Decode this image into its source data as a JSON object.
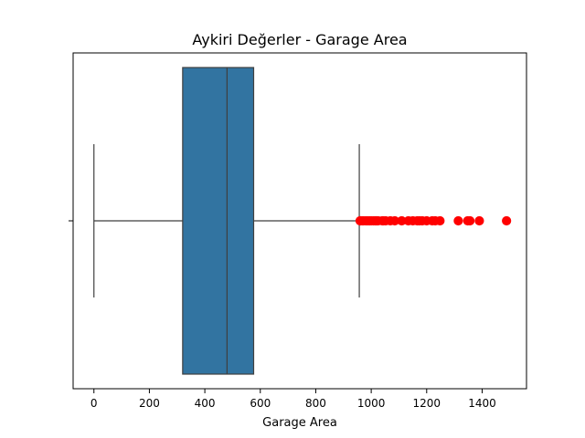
{
  "chart_data": {
    "type": "box",
    "title": "Aykiri Değerler - Garage Area",
    "xlabel": "Garage Area",
    "ylabel": "",
    "xlim": [
      -75,
      1560
    ],
    "xticks": [
      0,
      200,
      400,
      600,
      800,
      1000,
      1200,
      1400
    ],
    "orientation": "horizontal",
    "grid": false,
    "box": {
      "whisker_low": 0,
      "q1": 320,
      "median": 480,
      "q3": 576,
      "whisker_high": 957
    },
    "outliers": [
      960,
      962,
      968,
      972,
      980,
      985,
      990,
      995,
      1000,
      1008,
      1014,
      1018,
      1020,
      1025,
      1040,
      1043,
      1052,
      1069,
      1085,
      1110,
      1134,
      1150,
      1166,
      1174,
      1184,
      1200,
      1220,
      1231,
      1248,
      1314,
      1348,
      1356,
      1390,
      1488
    ]
  },
  "colors": {
    "box_fill": "#3274a1",
    "line": "#3f3f3f",
    "outlier": "#ff0000",
    "axes": "#000000"
  }
}
